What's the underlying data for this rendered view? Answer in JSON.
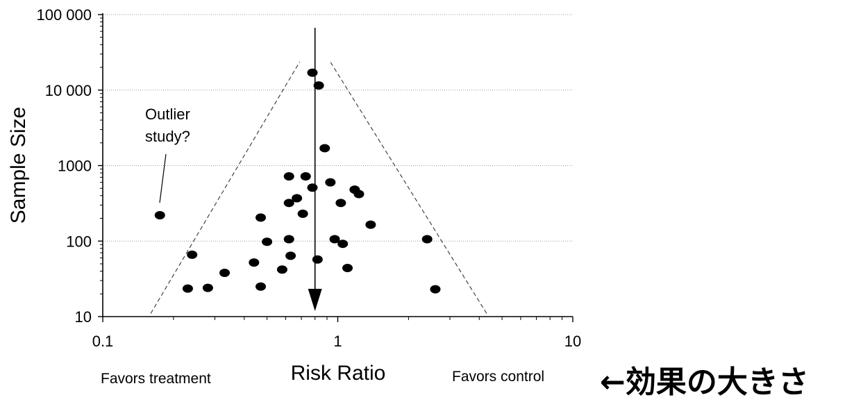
{
  "chart_data": {
    "type": "scatter",
    "title": "",
    "xlabel": "Risk Ratio",
    "ylabel": "Sample Size",
    "x_scale": "log",
    "y_scale": "log",
    "xlim": [
      0.1,
      10
    ],
    "ylim": [
      10,
      100000
    ],
    "x_ticks": [
      "0.1",
      "1",
      "10"
    ],
    "y_ticks": [
      "10",
      "100",
      "1000",
      "10 000",
      "100 000"
    ],
    "grid": "horizontal dotted",
    "x_left_note": "Favors treatment",
    "x_right_note": "Favors control",
    "side_label": "←効果の大きさ",
    "annotation": {
      "text_lines": [
        "Outlier",
        "study?"
      ],
      "points_to": [
        0.175,
        220
      ]
    },
    "reference_line_x": 0.8,
    "funnel": {
      "apex": [
        0.8,
        20000
      ],
      "left_base": [
        0.16,
        11
      ],
      "right_base": [
        4.3,
        11
      ]
    },
    "points": [
      [
        0.78,
        17000
      ],
      [
        0.83,
        11500
      ],
      [
        0.88,
        1700
      ],
      [
        0.62,
        720
      ],
      [
        0.73,
        720
      ],
      [
        0.78,
        510
      ],
      [
        0.93,
        600
      ],
      [
        1.18,
        480
      ],
      [
        1.23,
        420
      ],
      [
        0.67,
        370
      ],
      [
        0.62,
        320
      ],
      [
        1.03,
        320
      ],
      [
        0.71,
        230
      ],
      [
        1.38,
        165
      ],
      [
        0.47,
        205
      ],
      [
        0.175,
        220
      ],
      [
        0.24,
        66
      ],
      [
        0.5,
        98
      ],
      [
        0.62,
        106
      ],
      [
        0.97,
        106
      ],
      [
        1.05,
        92
      ],
      [
        2.4,
        106
      ],
      [
        0.44,
        52
      ],
      [
        0.63,
        64
      ],
      [
        0.82,
        57
      ],
      [
        0.33,
        38
      ],
      [
        0.58,
        42
      ],
      [
        1.1,
        44
      ],
      [
        0.23,
        23.5
      ],
      [
        0.28,
        24
      ],
      [
        0.47,
        25
      ],
      [
        2.6,
        23
      ]
    ]
  }
}
